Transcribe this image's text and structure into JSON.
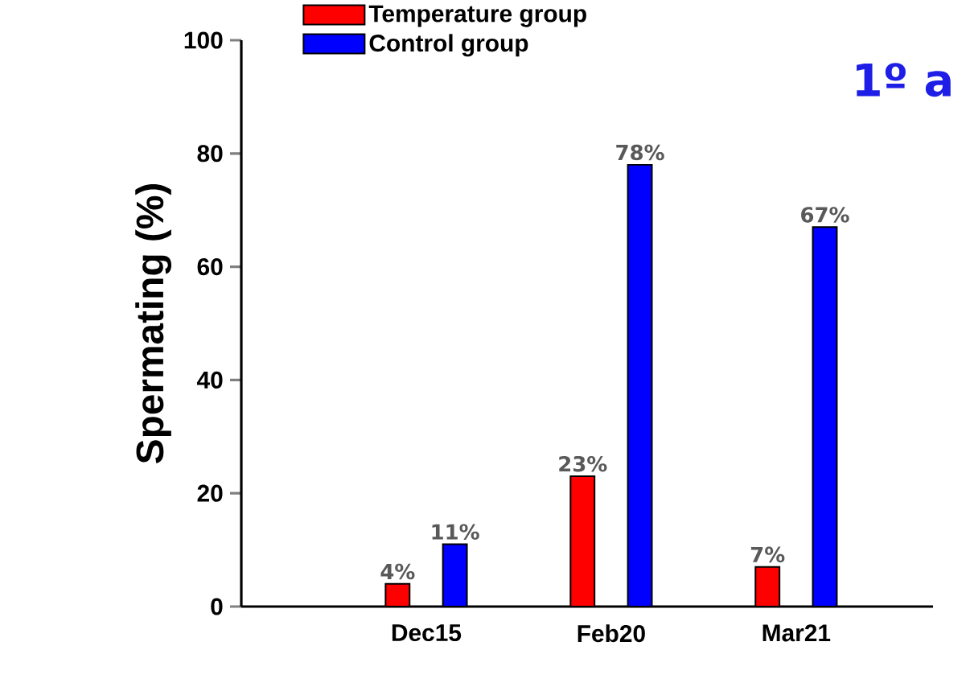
{
  "chart_data": {
    "type": "bar",
    "ylabel": "Spermating (%)",
    "categories": [
      "Dec15",
      "Feb20",
      "Mar21"
    ],
    "series": [
      {
        "name": "Temperature group",
        "color": "#ff0000",
        "values": [
          4,
          23,
          7
        ],
        "value_labels": [
          "4%",
          "23%",
          "7%"
        ]
      },
      {
        "name": "Control group",
        "color": "#0000ff",
        "values": [
          11,
          78,
          67
        ],
        "value_labels": [
          "11%",
          "78%",
          "67%"
        ]
      }
    ],
    "ylim": [
      0,
      100
    ],
    "yticks": [
      0,
      20,
      40,
      60,
      80,
      100
    ],
    "legend": "top left",
    "grid": false,
    "annotations": [
      "1º a"
    ]
  }
}
